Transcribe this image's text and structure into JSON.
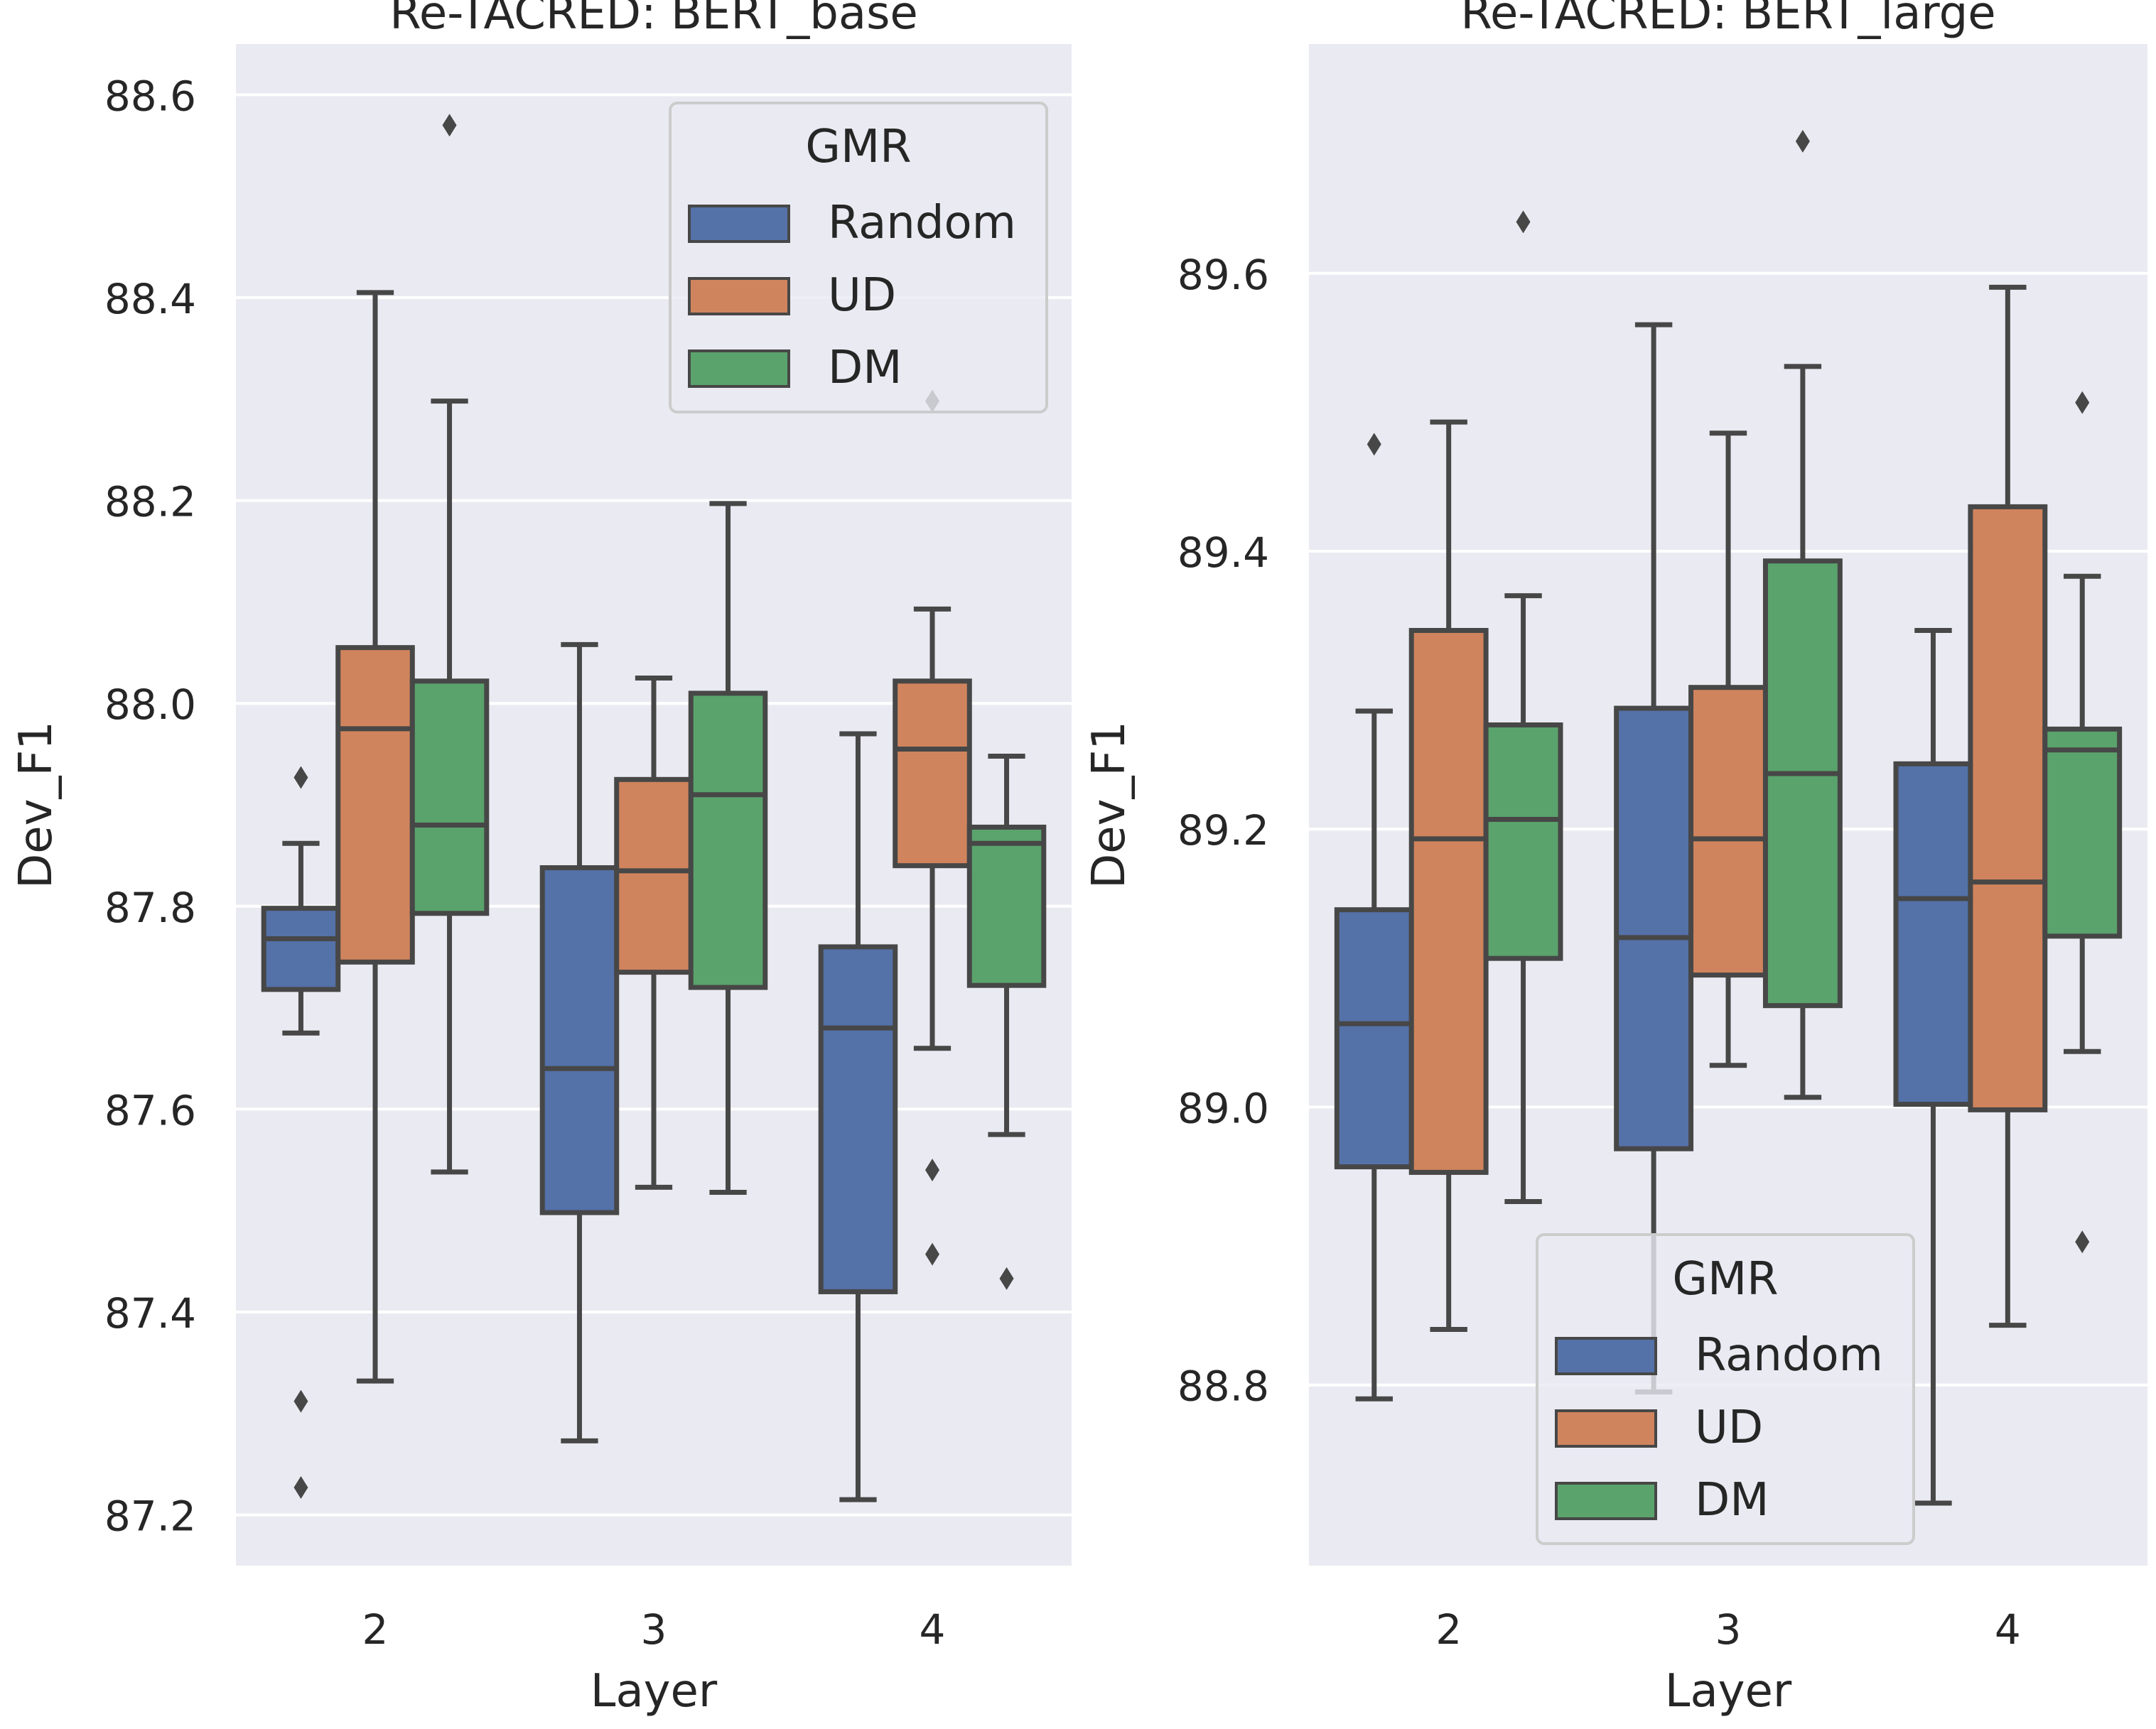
{
  "chart_data": [
    {
      "type": "box",
      "title": "Re-TACRED: BERT_base",
      "xlabel": "Layer",
      "ylabel": "Dev_F1",
      "categories": [
        "2",
        "3",
        "4"
      ],
      "ylim": [
        87.15,
        88.65
      ],
      "yticks": [
        "87.2",
        "87.4",
        "87.6",
        "87.8",
        "88.0",
        "88.2",
        "88.4",
        "88.6"
      ],
      "legend": {
        "title": "GMR",
        "position": "upper right",
        "entries": [
          "Random",
          "UD",
          "DM"
        ]
      },
      "series": [
        {
          "name": "Random",
          "boxes": [
            {
              "category": "2",
              "whislo": 87.675,
              "q1": 87.718,
              "med": 87.768,
              "q3": 87.798,
              "whishi": 87.862,
              "fliers": [
                87.927,
                87.312,
                87.227
              ]
            },
            {
              "category": "3",
              "whislo": 87.273,
              "q1": 87.498,
              "med": 87.64,
              "q3": 87.838,
              "whishi": 88.058,
              "fliers": []
            },
            {
              "category": "4",
              "whislo": 87.215,
              "q1": 87.42,
              "med": 87.68,
              "q3": 87.76,
              "whishi": 87.97,
              "fliers": []
            }
          ]
        },
        {
          "name": "UD",
          "boxes": [
            {
              "category": "2",
              "whislo": 87.332,
              "q1": 87.745,
              "med": 87.975,
              "q3": 88.055,
              "whishi": 88.405,
              "fliers": []
            },
            {
              "category": "3",
              "whislo": 87.523,
              "q1": 87.735,
              "med": 87.835,
              "q3": 87.925,
              "whishi": 88.025,
              "fliers": []
            },
            {
              "category": "4",
              "whislo": 87.66,
              "q1": 87.84,
              "med": 87.955,
              "q3": 88.022,
              "whishi": 88.093,
              "fliers": [
                87.54,
                87.457,
                88.298
              ]
            }
          ]
        },
        {
          "name": "DM",
          "boxes": [
            {
              "category": "2",
              "whislo": 87.538,
              "q1": 87.793,
              "med": 87.88,
              "q3": 88.022,
              "whishi": 88.298,
              "fliers": [
                88.57
              ]
            },
            {
              "category": "3",
              "whislo": 87.518,
              "q1": 87.72,
              "med": 87.91,
              "q3": 88.01,
              "whishi": 88.197,
              "fliers": []
            },
            {
              "category": "4",
              "whislo": 87.575,
              "q1": 87.722,
              "med": 87.862,
              "q3": 87.878,
              "whishi": 87.948,
              "fliers": [
                87.433
              ]
            }
          ]
        }
      ]
    },
    {
      "type": "box",
      "title": "Re-TACRED: BERT_large",
      "xlabel": "Layer",
      "ylabel": "Dev_F1",
      "categories": [
        "2",
        "3",
        "4"
      ],
      "ylim": [
        88.67,
        89.765
      ],
      "yticks": [
        "88.8",
        "89.0",
        "89.2",
        "89.4",
        "89.6"
      ],
      "legend": {
        "title": "GMR",
        "position": "lower center",
        "entries": [
          "Random",
          "UD",
          "DM"
        ]
      },
      "series": [
        {
          "name": "Random",
          "boxes": [
            {
              "category": "2",
              "whislo": 88.79,
              "q1": 88.957,
              "med": 89.06,
              "q3": 89.142,
              "whishi": 89.285,
              "fliers": [
                89.477
              ]
            },
            {
              "category": "3",
              "whislo": 88.795,
              "q1": 88.97,
              "med": 89.122,
              "q3": 89.287,
              "whishi": 89.563,
              "fliers": []
            },
            {
              "category": "4",
              "whislo": 88.715,
              "q1": 89.002,
              "med": 89.15,
              "q3": 89.247,
              "whishi": 89.343,
              "fliers": []
            }
          ]
        },
        {
          "name": "UD",
          "boxes": [
            {
              "category": "2",
              "whislo": 88.84,
              "q1": 88.953,
              "med": 89.193,
              "q3": 89.343,
              "whishi": 89.493,
              "fliers": []
            },
            {
              "category": "3",
              "whislo": 89.03,
              "q1": 89.095,
              "med": 89.193,
              "q3": 89.302,
              "whishi": 89.485,
              "fliers": []
            },
            {
              "category": "4",
              "whislo": 88.843,
              "q1": 88.998,
              "med": 89.162,
              "q3": 89.432,
              "whishi": 89.59,
              "fliers": []
            }
          ]
        },
        {
          "name": "DM",
          "boxes": [
            {
              "category": "2",
              "whislo": 88.932,
              "q1": 89.107,
              "med": 89.207,
              "q3": 89.275,
              "whishi": 89.368,
              "fliers": [
                89.637
              ]
            },
            {
              "category": "3",
              "whislo": 89.007,
              "q1": 89.073,
              "med": 89.24,
              "q3": 89.393,
              "whishi": 89.533,
              "fliers": [
                89.695
              ]
            },
            {
              "category": "4",
              "whislo": 89.04,
              "q1": 89.123,
              "med": 89.257,
              "q3": 89.272,
              "whishi": 89.382,
              "fliers": [
                89.507,
                88.903
              ]
            }
          ]
        }
      ]
    }
  ],
  "colors": {
    "Random": "#5471a8",
    "UD": "#d0845d",
    "DM": "#5aa36c",
    "panel_bg": "#eaeaf2",
    "grid": "#ffffff",
    "edge": "#474747",
    "text": "#262626"
  }
}
